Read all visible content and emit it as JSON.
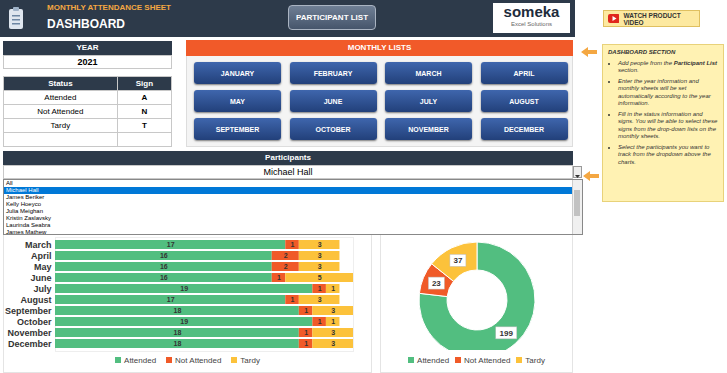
{
  "header": {
    "subtitle": "MONTHLY ATTENDANCE SHEET",
    "title": "DASHBOARD",
    "button": "PARTICIPANT LIST",
    "logo": "someka",
    "logo_sub": "Excel Solutions",
    "video": "WATCH PRODUCT VIDEO"
  },
  "year": {
    "label": "YEAR",
    "value": 2021
  },
  "status_table": {
    "columns": [
      "Status",
      "Sign"
    ],
    "rows": [
      [
        "Attended",
        "A"
      ],
      [
        "Not Attended",
        "N"
      ],
      [
        "Tardy",
        "T"
      ]
    ]
  },
  "monthly_lists": {
    "title": "MONTHLY LISTS",
    "months": [
      "JANUARY",
      "FEBRUARY",
      "MARCH",
      "APRIL",
      "MAY",
      "JUNE",
      "JULY",
      "AUGUST",
      "SEPTEMBER",
      "OCTOBER",
      "NOVEMBER",
      "DECEMBER"
    ]
  },
  "notes": {
    "title": "DASHBOARD SECTION",
    "items": [
      {
        "before": "Add people from the ",
        "bold": "Participant List",
        "after": " section."
      },
      {
        "before": "Enter the year information and monthly sheets will be set automatically according to the year information."
      },
      {
        "before": "Fill in the status information and signs. You will be able to select these signs from the drop-down lists on the monthly sheets."
      },
      {
        "before": "Select the participants you want to track from the dropdown above the charts."
      }
    ]
  },
  "participants": {
    "title": "Participants",
    "selected": "Michael Hall",
    "options": [
      "All",
      "Michael Hall",
      "James Beriker",
      "Kelly Hoeyco",
      "Julia Meighan",
      "Kristin Zaslavsky",
      "Laurinda Seabra",
      "James Mathew"
    ]
  },
  "chart_data": [
    {
      "type": "bar",
      "orientation": "horizontal",
      "stacked": true,
      "data_labels": true,
      "tick_labels": "y",
      "legend": "bottom",
      "categories": [
        "March",
        "April",
        "May",
        "June",
        "July",
        "August",
        "September",
        "October",
        "November",
        "December"
      ],
      "xlim": [
        0,
        22
      ],
      "series": [
        {
          "name": "Attended",
          "color": "#52be80",
          "values": [
            17,
            16,
            16,
            16,
            19,
            17,
            18,
            19,
            18,
            18
          ]
        },
        {
          "name": "Not Attended",
          "color": "#f05a28",
          "values": [
            1,
            2,
            2,
            1,
            1,
            1,
            1,
            1,
            1,
            1
          ]
        },
        {
          "name": "Tardy",
          "color": "#fcc23b",
          "values": [
            3,
            3,
            3,
            5,
            1,
            3,
            3,
            1,
            3,
            3
          ]
        }
      ]
    },
    {
      "type": "pie",
      "data_labels": true,
      "legend": "bottom",
      "categories": [
        "Attended",
        "Not Attended",
        "Tardy"
      ],
      "values": [
        199,
        23,
        37
      ],
      "colors": [
        "#52be80",
        "#f05a28",
        "#fcc23b"
      ]
    }
  ]
}
